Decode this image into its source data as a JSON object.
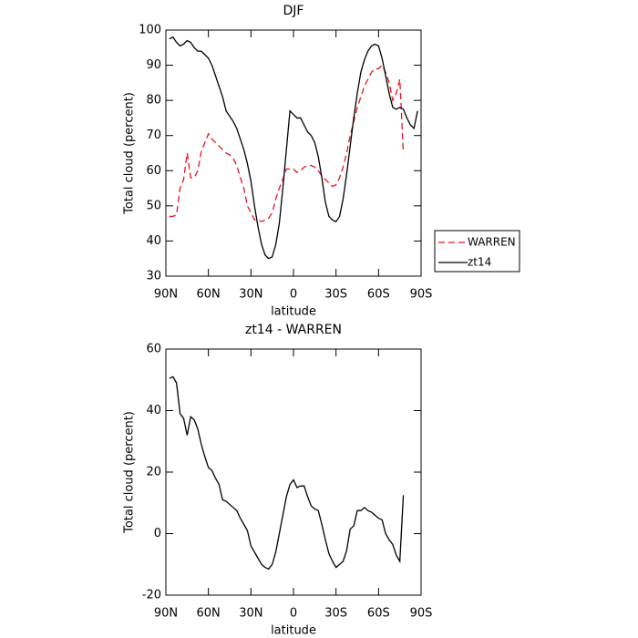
{
  "chart_data": [
    {
      "type": "line",
      "title": "DJF",
      "xlabel": "latitude",
      "ylabel": "Total cloud (percent)",
      "xlim": [
        90,
        -90
      ],
      "xticks": [
        {
          "value": 90,
          "label": "90N"
        },
        {
          "value": 60,
          "label": "60N"
        },
        {
          "value": 30,
          "label": "30N"
        },
        0,
        {
          "value": -30,
          "label": "30S"
        },
        {
          "value": -60,
          "label": "60S"
        },
        {
          "value": -90,
          "label": "90S"
        }
      ],
      "ylim": [
        30,
        100
      ],
      "yticks": [
        30,
        40,
        50,
        60,
        70,
        80,
        90,
        100
      ],
      "legend": "right",
      "series": [
        {
          "name": "WARREN",
          "color": "#e8141e",
          "dash": true,
          "x": [
            87.5,
            85,
            82.5,
            80,
            77.5,
            75,
            72.5,
            70,
            67.5,
            65,
            62.5,
            60,
            57.5,
            55,
            52.5,
            50,
            47.5,
            45,
            42.5,
            40,
            37.5,
            35,
            32.5,
            30,
            27.5,
            25,
            22.5,
            20,
            17.5,
            15,
            12.5,
            10,
            7.5,
            5,
            2.5,
            0,
            -2.5,
            -5,
            -7.5,
            -10,
            -12.5,
            -15,
            -17.5,
            -20,
            -22.5,
            -25,
            -27.5,
            -30,
            -32.5,
            -35,
            -37.5,
            -40,
            -42.5,
            -45,
            -47.5,
            -50,
            -52.5,
            -55,
            -57.5,
            -60,
            -62.5,
            -65,
            -67.5,
            -70,
            -72.5,
            -75,
            -77.5
          ],
          "values": [
            47,
            47,
            47.5,
            55,
            57.5,
            65,
            58,
            58,
            60,
            65.5,
            68,
            70.5,
            69,
            68,
            67,
            66,
            65,
            64.5,
            63.5,
            61.5,
            58,
            55,
            50,
            48,
            46,
            46,
            45.5,
            46,
            46.5,
            48,
            52,
            55,
            57.5,
            60.5,
            60.5,
            60.5,
            59.5,
            60,
            61,
            61.5,
            61.5,
            61,
            60,
            58.5,
            57.5,
            56.5,
            55.5,
            56,
            58,
            61,
            65,
            70,
            74,
            78,
            81,
            84,
            86,
            88,
            89,
            89,
            90,
            88,
            85,
            80,
            82,
            86,
            65
          ]
        },
        {
          "name": "zt14",
          "color": "#000000",
          "dash": false,
          "x": [
            87.5,
            85,
            82.5,
            80,
            77.5,
            75,
            72.5,
            70,
            67.5,
            65,
            62.5,
            60,
            57.5,
            55,
            52.5,
            50,
            47.5,
            45,
            42.5,
            40,
            37.5,
            35,
            32.5,
            30,
            27.5,
            25,
            22.5,
            20,
            17.5,
            15,
            12.5,
            10,
            7.5,
            5,
            2.5,
            0,
            -2.5,
            -5,
            -7.5,
            -10,
            -12.5,
            -15,
            -17.5,
            -20,
            -22.5,
            -25,
            -27.5,
            -30,
            -32.5,
            -35,
            -37.5,
            -40,
            -42.5,
            -45,
            -47.5,
            -50,
            -52.5,
            -55,
            -57.5,
            -60,
            -62.5,
            -65,
            -67.5,
            -70,
            -72.5,
            -75,
            -77.5,
            -80,
            -82.5,
            -85,
            -87.5
          ],
          "values": [
            97.5,
            98,
            96.5,
            95.5,
            96,
            97,
            96.5,
            95,
            94,
            94,
            93,
            92,
            90,
            87,
            84,
            81,
            77,
            75.5,
            74,
            72,
            69,
            66,
            62,
            57,
            50,
            44,
            39,
            36,
            35,
            35.5,
            39,
            45,
            55,
            66,
            77,
            76,
            75,
            75,
            73,
            71,
            70,
            68,
            64,
            58,
            51,
            47,
            46,
            45.5,
            47,
            52,
            59,
            67,
            75,
            82,
            88,
            91.5,
            94,
            95.5,
            96,
            95.5,
            92,
            87,
            82,
            78,
            77.5,
            78,
            77.5,
            75,
            73,
            72,
            77
          ]
        }
      ]
    },
    {
      "type": "line",
      "title": "zt14 - WARREN",
      "xlabel": "latitude",
      "ylabel": "Total cloud (percent)",
      "xlim": [
        90,
        -90
      ],
      "xticks": [
        {
          "value": 90,
          "label": "90N"
        },
        {
          "value": 60,
          "label": "60N"
        },
        {
          "value": 30,
          "label": "30N"
        },
        0,
        {
          "value": -30,
          "label": "30S"
        },
        {
          "value": -60,
          "label": "60S"
        },
        {
          "value": -90,
          "label": "90S"
        }
      ],
      "ylim": [
        -20,
        60
      ],
      "yticks": [
        -20,
        0,
        20,
        40,
        60
      ],
      "color": "#000000",
      "x": [
        87.5,
        85,
        82.5,
        80,
        77.5,
        75,
        72.5,
        70,
        67.5,
        65,
        62.5,
        60,
        57.5,
        55,
        52.5,
        50,
        47.5,
        45,
        42.5,
        40,
        37.5,
        35,
        32.5,
        30,
        27.5,
        25,
        22.5,
        20,
        17.5,
        15,
        12.5,
        10,
        7.5,
        5,
        2.5,
        0,
        -2.5,
        -5,
        -7.5,
        -10,
        -12.5,
        -15,
        -17.5,
        -20,
        -22.5,
        -25,
        -27.5,
        -30,
        -32.5,
        -35,
        -37.5,
        -40,
        -42.5,
        -45,
        -47.5,
        -50,
        -52.5,
        -55,
        -57.5,
        -60,
        -62.5,
        -65,
        -67.5,
        -70,
        -72.5,
        -75,
        -77.5
      ],
      "values": [
        50.5,
        51,
        49,
        39,
        37.5,
        32,
        38,
        37,
        34,
        29,
        25,
        21.5,
        20.5,
        18,
        16,
        11,
        10.5,
        9.5,
        8.5,
        7.5,
        5,
        3,
        1,
        -4,
        -6,
        -8,
        -10,
        -11,
        -11.5,
        -10,
        -6,
        0,
        6,
        12,
        16,
        17.5,
        15,
        15.5,
        15.5,
        12,
        9,
        8,
        7.5,
        3,
        -2,
        -6.5,
        -9,
        -11,
        -10,
        -9,
        -5.5,
        1.5,
        2.5,
        7.5,
        7.5,
        8.5,
        7.5,
        7,
        6,
        5,
        4.5,
        0,
        -2,
        -3.5,
        -7,
        -9,
        12.5
      ]
    }
  ]
}
